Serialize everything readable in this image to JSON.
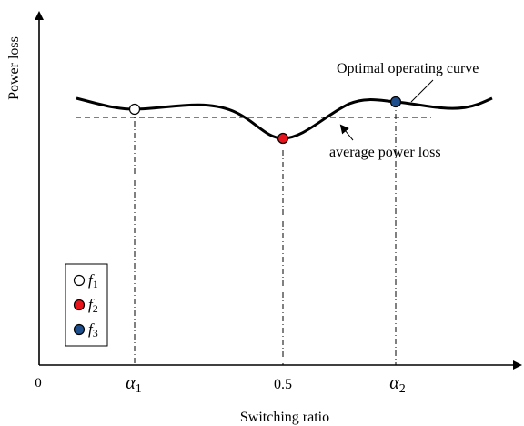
{
  "title": "",
  "axes": {
    "x_label": "Switching ratio",
    "y_label": "Power loss",
    "origin_label": "0",
    "x_ticks": [
      {
        "base": "α",
        "sub": "1"
      },
      {
        "base": "0.5",
        "sub": ""
      },
      {
        "base": "α",
        "sub": "2"
      }
    ]
  },
  "annotations": {
    "optimal_curve": "Optimal operating curve",
    "average_loss": "average power loss"
  },
  "legend": [
    {
      "base": "f",
      "sub": "1",
      "color": "#ffffff"
    },
    {
      "base": "f",
      "sub": "2",
      "color": "#e8141b"
    },
    {
      "base": "f",
      "sub": "3",
      "color": "#1f4e8c"
    }
  ],
  "colors": {
    "curve": "#000000",
    "f1": "#ffffff",
    "f2": "#e8141b",
    "f3": "#1f4e8c"
  }
}
